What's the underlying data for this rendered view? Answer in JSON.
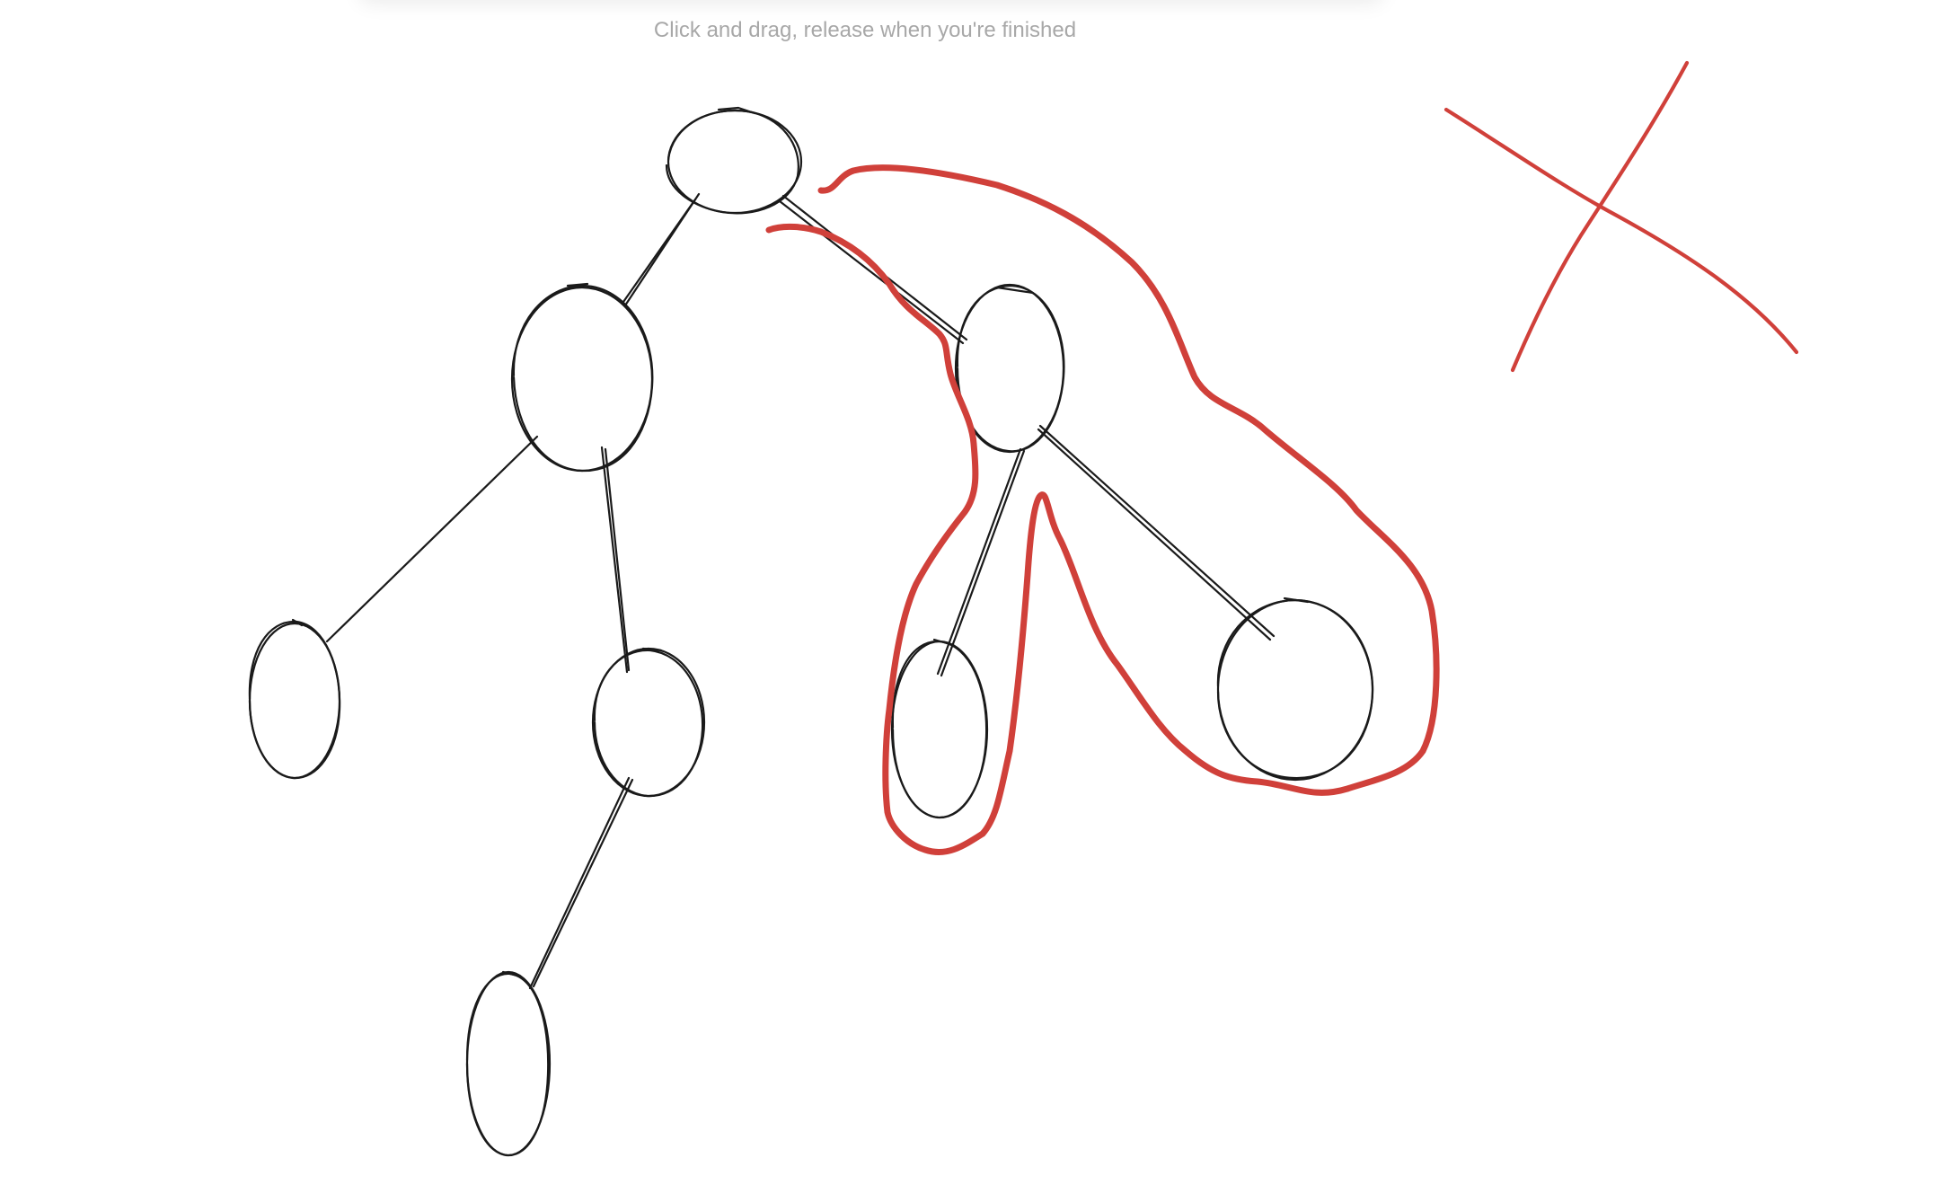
{
  "hint": {
    "text": "Click and drag, release when you're finished"
  },
  "colors": {
    "ink": "#1a1a1a",
    "lasso": "#d0403a",
    "hint": "#a8a8a8",
    "background": "#ffffff"
  }
}
